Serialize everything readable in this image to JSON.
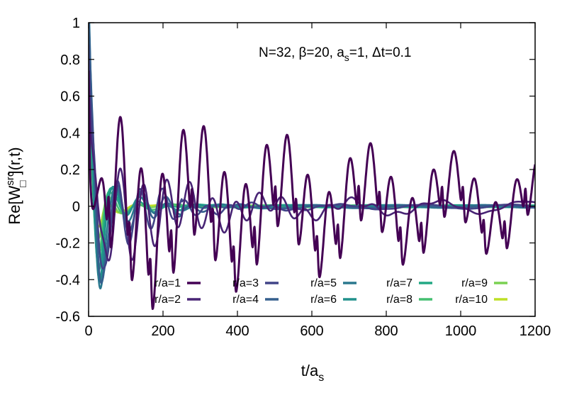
{
  "chart_data": {
    "type": "line",
    "title": "",
    "annotation": "N=32, β=20, a_s=1, Δt=0.1",
    "xlabel": "t/a_s",
    "ylabel": "Re[W_□^src](r,t)",
    "xlim": [
      0,
      1200
    ],
    "ylim": [
      -0.6,
      1
    ],
    "x_ticks": [
      "0",
      "200",
      "400",
      "600",
      "800",
      "1000",
      "1200"
    ],
    "y_ticks": [
      "1",
      "0.8",
      "0.6",
      "0.4",
      "0.2",
      "0",
      "-0.2",
      "-0.4",
      "-0.6"
    ],
    "legend_position": "bottom",
    "grid": false,
    "series": [
      {
        "name": "r/a=1",
        "color": "#440154",
        "amp": 0.42,
        "period": 56,
        "decay": 0.0009,
        "envelope": 0.2,
        "offset": -0.05
      },
      {
        "name": "r/a=2",
        "color": "#482475",
        "amp": 0.35,
        "period": 62,
        "decay": 0.004,
        "envelope": 0.05,
        "offset": -0.04
      },
      {
        "name": "r/a=3",
        "color": "#414487",
        "amp": 0.3,
        "period": 60,
        "decay": 0.006,
        "envelope": 0.03,
        "offset": -0.03
      },
      {
        "name": "r/a=4",
        "color": "#355f8d",
        "amp": 0.28,
        "period": 66,
        "decay": 0.008,
        "envelope": 0.02,
        "offset": -0.02
      },
      {
        "name": "r/a=5",
        "color": "#2a788e",
        "amp": 0.25,
        "period": 70,
        "decay": 0.01,
        "envelope": 0.02,
        "offset": -0.01
      },
      {
        "name": "r/a=6",
        "color": "#21918c",
        "amp": 0.22,
        "period": 72,
        "decay": 0.012,
        "envelope": 0.015,
        "offset": 0
      },
      {
        "name": "r/a=7",
        "color": "#22a884",
        "amp": 0.2,
        "period": 76,
        "decay": 0.014,
        "envelope": 0.015,
        "offset": 0
      },
      {
        "name": "r/a=8",
        "color": "#44bf70",
        "amp": 0.18,
        "period": 80,
        "decay": 0.016,
        "envelope": 0.012,
        "offset": 0
      },
      {
        "name": "r/a=9",
        "color": "#7ad151",
        "amp": 0.16,
        "period": 84,
        "decay": 0.018,
        "envelope": 0.01,
        "offset": 0
      },
      {
        "name": "r/a=10",
        "color": "#bddf26",
        "amp": 0.14,
        "period": 88,
        "decay": 0.02,
        "envelope": 0.01,
        "offset": 0
      }
    ]
  }
}
